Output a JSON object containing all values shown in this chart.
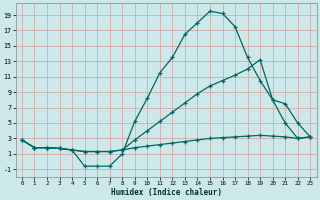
{
  "xlabel": "Humidex (Indice chaleur)",
  "background_color": "#cce8e8",
  "grid_color": "#d4a0a0",
  "line_color": "#006666",
  "xlim": [
    -0.5,
    23.5
  ],
  "ylim": [
    -2,
    20.5
  ],
  "xticks": [
    0,
    1,
    2,
    3,
    4,
    5,
    6,
    7,
    8,
    9,
    10,
    11,
    12,
    13,
    14,
    15,
    16,
    17,
    18,
    19,
    20,
    21,
    22,
    23
  ],
  "yticks": [
    -1,
    1,
    3,
    5,
    7,
    9,
    11,
    13,
    15,
    17,
    19
  ],
  "curve1_x": [
    0,
    1,
    2,
    3,
    4,
    5,
    6,
    7,
    8,
    9,
    10,
    11,
    12,
    13,
    14,
    15,
    16,
    17,
    18,
    19,
    20,
    21,
    22,
    23
  ],
  "curve1_y": [
    2.8,
    1.8,
    1.8,
    1.7,
    1.5,
    -0.6,
    -0.6,
    -0.6,
    1.0,
    5.2,
    8.2,
    11.5,
    13.5,
    16.5,
    18.0,
    19.5,
    19.2,
    17.5,
    13.5,
    10.5,
    8.0,
    5.0,
    3.0,
    3.2
  ],
  "curve2_x": [
    0,
    1,
    2,
    3,
    4,
    5,
    6,
    7,
    8,
    9,
    10,
    11,
    12,
    13,
    14,
    15,
    16,
    17,
    18,
    19,
    20,
    21,
    22,
    23
  ],
  "curve2_y": [
    2.8,
    1.8,
    1.8,
    1.7,
    1.5,
    1.3,
    1.3,
    1.3,
    1.5,
    2.8,
    4.0,
    5.2,
    6.4,
    7.6,
    8.8,
    9.8,
    10.5,
    11.2,
    12.0,
    13.2,
    8.0,
    7.5,
    5.0,
    3.2
  ],
  "curve3_x": [
    0,
    1,
    2,
    3,
    4,
    5,
    6,
    7,
    8,
    9,
    10,
    11,
    12,
    13,
    14,
    15,
    16,
    17,
    18,
    19,
    20,
    21,
    22,
    23
  ],
  "curve3_y": [
    2.8,
    1.8,
    1.8,
    1.7,
    1.5,
    1.3,
    1.3,
    1.3,
    1.5,
    1.8,
    2.0,
    2.2,
    2.4,
    2.6,
    2.8,
    3.0,
    3.1,
    3.2,
    3.3,
    3.4,
    3.3,
    3.2,
    3.0,
    3.2
  ]
}
